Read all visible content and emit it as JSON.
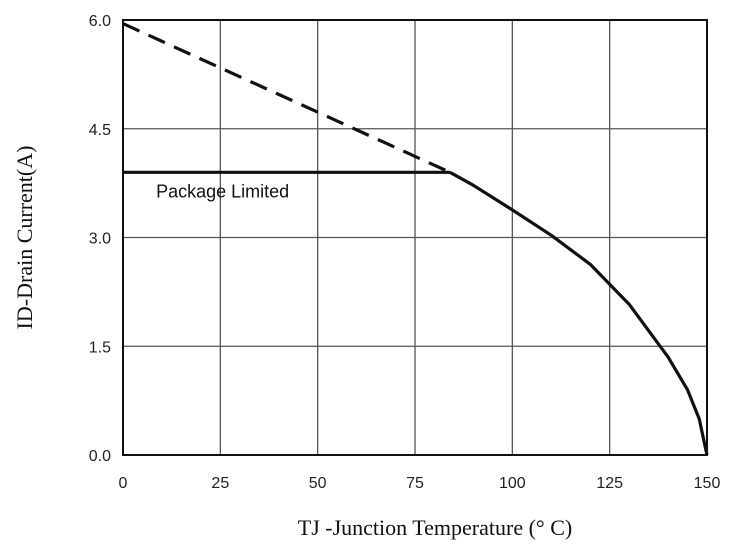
{
  "chart_data": {
    "type": "line",
    "xlabel": "TJ -Junction Temperature (° C)",
    "ylabel": "ID-Drain Current(A)",
    "xlim": [
      0,
      150
    ],
    "ylim": [
      0,
      6.0
    ],
    "x_ticks": [
      "0",
      "25",
      "50",
      "75",
      "100",
      "125",
      "150"
    ],
    "y_ticks": [
      "0.0",
      "1.5",
      "3.0",
      "4.5",
      "6.0"
    ],
    "x_tick_values": [
      0,
      25,
      50,
      75,
      100,
      125,
      150
    ],
    "y_tick_values": [
      0,
      1.5,
      3.0,
      4.5,
      6.0
    ],
    "grid": true,
    "series": [
      {
        "name": "",
        "style": "dashed",
        "color": "#111111",
        "x": [
          0,
          84
        ],
        "y": [
          5.95,
          3.9
        ]
      },
      {
        "name": "",
        "style": "solid",
        "color": "#111111",
        "x": [
          0,
          84
        ],
        "y": [
          3.9,
          3.9
        ]
      },
      {
        "name": "",
        "style": "solid",
        "color": "#111111",
        "x": [
          84,
          90,
          100,
          110,
          120,
          130,
          140,
          145,
          148,
          150
        ],
        "y": [
          3.9,
          3.72,
          3.38,
          3.03,
          2.63,
          2.08,
          1.35,
          0.9,
          0.5,
          0.0
        ]
      }
    ],
    "annotations": [
      {
        "text": "Package Limited",
        "x": 8.5,
        "y": 3.55
      }
    ]
  }
}
